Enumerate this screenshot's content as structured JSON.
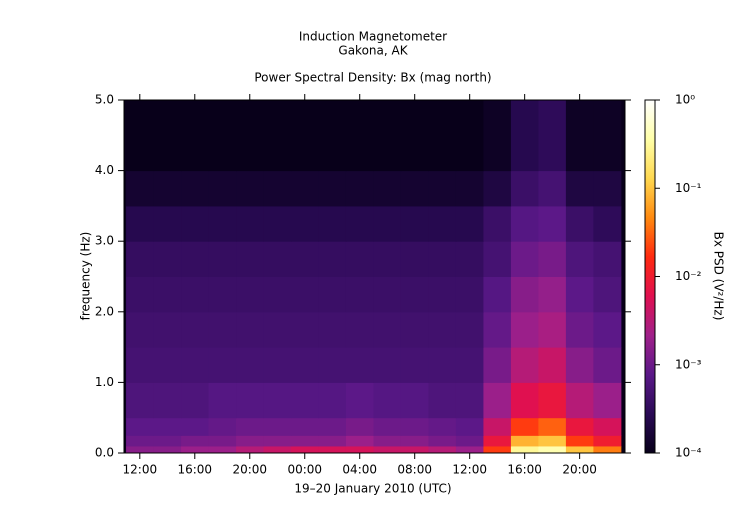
{
  "chart_data": {
    "type": "spectrogram",
    "title": "Induction Magnetometer",
    "subtitle": "Gakona, AK",
    "plot_title": "Power Spectral Density: Bx (mag north)",
    "xlabel": "19–20 January 2010 (UTC)",
    "ylabel": "frequency (Hz)",
    "colorbar_label": "Bx PSD (V²/Hz)",
    "xlim": [
      10.85,
      47.3
    ],
    "xticks": [
      {
        "value": 12,
        "label": "12:00"
      },
      {
        "value": 16,
        "label": "16:00"
      },
      {
        "value": 20,
        "label": "20:00"
      },
      {
        "value": 24,
        "label": "00:00"
      },
      {
        "value": 28,
        "label": "04:00"
      },
      {
        "value": 32,
        "label": "08:00"
      },
      {
        "value": 36,
        "label": "12:00"
      },
      {
        "value": 40,
        "label": "16:00"
      },
      {
        "value": 44,
        "label": "20:00"
      }
    ],
    "ylim": [
      0,
      5
    ],
    "yticks": [
      {
        "value": 0,
        "label": "0.0"
      },
      {
        "value": 1,
        "label": "1.0"
      },
      {
        "value": 2,
        "label": "2.0"
      },
      {
        "value": 3,
        "label": "3.0"
      },
      {
        "value": 4,
        "label": "4.0"
      },
      {
        "value": 5,
        "label": "5.0"
      }
    ],
    "zlim": [
      0.0001,
      1
    ],
    "zscale": "log",
    "zticks": [
      {
        "value": 1,
        "label": "10⁰"
      },
      {
        "value": 0.1,
        "label": "10⁻¹"
      },
      {
        "value": 0.01,
        "label": "10⁻²"
      },
      {
        "value": 0.001,
        "label": "10⁻³"
      },
      {
        "value": 0.0001,
        "label": "10⁻⁴"
      }
    ],
    "colormap": [
      "#08001a",
      "#2a0a55",
      "#5a1888",
      "#a0208a",
      "#e01050",
      "#ff2a10",
      "#ff8a10",
      "#ffd850",
      "#ffffa8",
      "#ffffff"
    ],
    "xbins": [
      11,
      13,
      15,
      17,
      19,
      21,
      23,
      25,
      27,
      29,
      31,
      33,
      35,
      37,
      39,
      41,
      43,
      45,
      47
    ],
    "ybins": [
      0,
      0.1,
      0.25,
      0.5,
      1,
      1.5,
      2,
      2.5,
      3,
      3.5,
      4,
      5
    ],
    "z": [
      [
        0.0015,
        0.0015,
        0.002,
        0.002,
        0.003,
        0.004,
        0.005,
        0.005,
        0.005,
        0.004,
        0.004,
        0.003,
        0.002,
        0.02,
        0.3,
        0.4,
        0.1,
        0.04
      ],
      [
        0.001,
        0.001,
        0.0012,
        0.0012,
        0.0015,
        0.0015,
        0.0015,
        0.0015,
        0.002,
        0.0015,
        0.0015,
        0.0012,
        0.001,
        0.008,
        0.08,
        0.1,
        0.02,
        0.01
      ],
      [
        0.0008,
        0.0008,
        0.0008,
        0.0009,
        0.001,
        0.001,
        0.001,
        0.001,
        0.0012,
        0.001,
        0.001,
        0.0009,
        0.0008,
        0.004,
        0.02,
        0.03,
        0.008,
        0.005
      ],
      [
        0.0006,
        0.0006,
        0.0006,
        0.0007,
        0.0007,
        0.0007,
        0.0007,
        0.0007,
        0.0008,
        0.0007,
        0.0007,
        0.0006,
        0.0006,
        0.002,
        0.006,
        0.008,
        0.003,
        0.002
      ],
      [
        0.0005,
        0.0005,
        0.0005,
        0.0005,
        0.0005,
        0.0005,
        0.0005,
        0.0005,
        0.0005,
        0.0005,
        0.0005,
        0.0005,
        0.0005,
        0.0012,
        0.003,
        0.004,
        0.0015,
        0.001
      ],
      [
        0.00045,
        0.00045,
        0.00045,
        0.00045,
        0.00045,
        0.00045,
        0.00045,
        0.00045,
        0.00045,
        0.00045,
        0.00045,
        0.00045,
        0.00045,
        0.0009,
        0.002,
        0.0025,
        0.001,
        0.0008
      ],
      [
        0.0004,
        0.0004,
        0.0004,
        0.0004,
        0.0004,
        0.0004,
        0.0004,
        0.0004,
        0.0004,
        0.0004,
        0.0004,
        0.0004,
        0.0004,
        0.0007,
        0.0015,
        0.0018,
        0.0008,
        0.0006
      ],
      [
        0.00035,
        0.00035,
        0.00035,
        0.00035,
        0.00035,
        0.00035,
        0.00035,
        0.00035,
        0.00035,
        0.00035,
        0.00035,
        0.00035,
        0.00035,
        0.0005,
        0.001,
        0.0012,
        0.0006,
        0.0005
      ],
      [
        0.00025,
        0.00025,
        0.00025,
        0.00025,
        0.00025,
        0.00025,
        0.00025,
        0.00025,
        0.00025,
        0.00025,
        0.00025,
        0.00025,
        0.00025,
        0.0004,
        0.0007,
        0.0008,
        0.0004,
        0.0003
      ],
      [
        0.00015,
        0.00015,
        0.00015,
        0.00015,
        0.00015,
        0.00015,
        0.00015,
        0.00015,
        0.00015,
        0.00015,
        0.00015,
        0.00015,
        0.00015,
        0.0002,
        0.0004,
        0.0005,
        0.0002,
        0.0002
      ],
      [
        0.0001,
        0.0001,
        0.0001,
        0.0001,
        0.0001,
        0.0001,
        0.0001,
        0.0001,
        0.0001,
        0.0001,
        0.0001,
        0.0001,
        0.0001,
        0.00012,
        0.00025,
        0.0003,
        0.00012,
        0.00012
      ]
    ]
  }
}
